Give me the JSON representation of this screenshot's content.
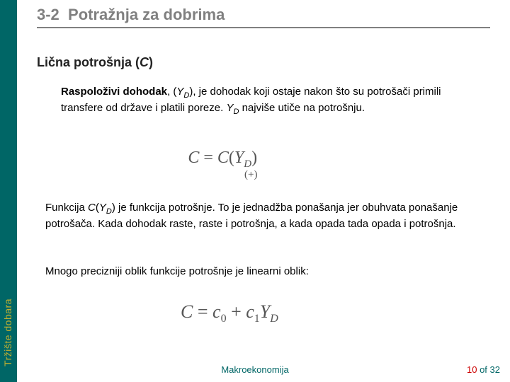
{
  "sidebar": {
    "label": "Tržište dobara"
  },
  "heading": {
    "number": "3-2",
    "title": "Potražnja za dobrima"
  },
  "subheading": {
    "prefix": "Lična potrošnja (",
    "var": "C",
    "suffix": ")"
  },
  "para1": {
    "bold": "Raspoloživi dohodak",
    "mid1": ", (",
    "yv": "Y",
    "ys": "D",
    "mid2": "), je dohodak koji ostaje nakon što su potrošači primili transfere od države i platili poreze. ",
    "yv2": "Y",
    "ys2": "D",
    "tail": " najviše utiče na potrošnju."
  },
  "eq1": {
    "lhs": "C",
    "eq": " = ",
    "rhs1": "C",
    "lp": "(",
    "yv": "Y",
    "ys": "D",
    "rp": ")",
    "below": "(+)"
  },
  "para2": {
    "t1": "Funkcija ",
    "cv": "C",
    "lp": "(",
    "yv": "Y",
    "ys": "D",
    "rp": ")",
    "t2": " je funkcija potrošnje. To je jednadžba ponašanja jer obuhvata ponašanje potrošača. Kada dohodak raste, raste i potrošnja, a kada opada tada opada i potrošnja."
  },
  "para3": {
    "text": "Mnogo precizniji oblik funkcije potrošnje je linearni oblik:"
  },
  "eq2": {
    "lhs": "C",
    "eq": " = ",
    "c": "c",
    "s0": "0",
    "plus": " + ",
    "c2": "c",
    "s1": "1",
    "yv": "Y",
    "ys": "D"
  },
  "footer": {
    "center": "Makroekonomija",
    "page": "10",
    "of": " of 32"
  }
}
